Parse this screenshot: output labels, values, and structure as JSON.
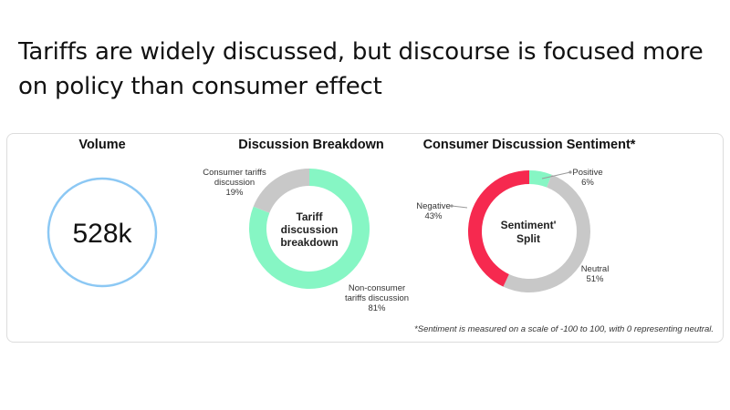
{
  "headline": "Tariffs are widely discussed, but discourse is focused more on policy than consumer effect",
  "colors": {
    "volume_ring": "#8cc8f4",
    "green": "#86f6c4",
    "gray": "#c8c8c8",
    "red": "#f6294f",
    "leader": "#9a9a9a"
  },
  "chart_data": [
    {
      "type": "kpi",
      "title": "Volume",
      "value_label": "528k"
    },
    {
      "type": "pie",
      "donut": true,
      "title": "Discussion Breakdown",
      "center_label": [
        "Tariff",
        "discussion",
        "breakdown"
      ],
      "slices": [
        {
          "name": "Consumer tariffs discussion",
          "label_lines": [
            "Consumer tariffs",
            "discussion"
          ],
          "pct_label": "19%",
          "value": 19,
          "color_key": "gray"
        },
        {
          "name": "Non-consumer tariffs discussion",
          "label_lines": [
            "Non-consumer",
            "tariffs discussion"
          ],
          "pct_label": "81%",
          "value": 81,
          "color_key": "green"
        }
      ]
    },
    {
      "type": "pie",
      "donut": true,
      "title": "Consumer Discussion Sentiment*",
      "center_label": [
        "Sentiment'",
        "Split"
      ],
      "slices": [
        {
          "name": "Positive",
          "label_lines": [
            "Positive"
          ],
          "pct_label": "6%",
          "value": 6,
          "color_key": "green"
        },
        {
          "name": "Neutral",
          "label_lines": [
            "Neutral"
          ],
          "pct_label": "51%",
          "value": 51,
          "color_key": "gray"
        },
        {
          "name": "Negative",
          "label_lines": [
            "Negative"
          ],
          "pct_label": "43%",
          "value": 43,
          "color_key": "red"
        }
      ],
      "footnote": "*Sentiment is measured on a scale of -100 to 100, with 0 representing neutral."
    }
  ]
}
